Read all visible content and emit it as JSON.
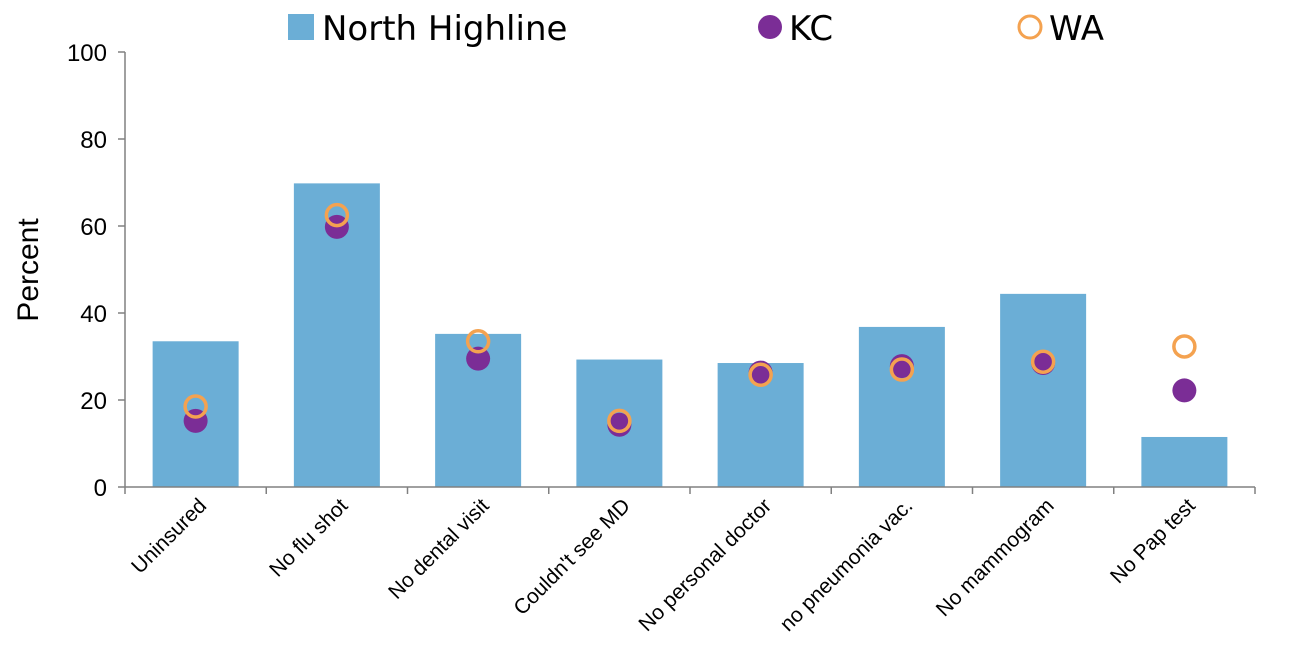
{
  "chart_data": {
    "type": "bar",
    "title": "",
    "xlabel": "",
    "ylabel": "Percent",
    "ylim": [
      0,
      100
    ],
    "yticks": [
      0,
      20,
      40,
      60,
      80,
      100
    ],
    "ytick_labels": [
      "0",
      "20",
      "40",
      "60",
      "80",
      "100"
    ],
    "grid": false,
    "legend_position": "top",
    "categories": [
      "Uninsured",
      "No flu shot",
      "No dental visit",
      "Couldn't see MD",
      "No personal doctor",
      "no pneumonia vac.",
      "No mammogram",
      "No Pap test"
    ],
    "series": [
      {
        "name": "North Highline",
        "mark": "bar",
        "color": "#6baed6",
        "values": [
          33.5,
          69.8,
          35.2,
          29.3,
          28.5,
          36.8,
          44.4,
          11.5
        ]
      },
      {
        "name": "KC",
        "mark": "filled-circle",
        "color": "#7b2d96",
        "values": [
          15.2,
          59.8,
          29.5,
          14.3,
          26.3,
          27.8,
          28.5,
          22.2
        ]
      },
      {
        "name": "WA",
        "mark": "open-circle",
        "color": "#f4a250",
        "values": [
          18.5,
          62.5,
          33.5,
          15.2,
          25.8,
          27.0,
          28.8,
          32.3
        ]
      }
    ]
  }
}
